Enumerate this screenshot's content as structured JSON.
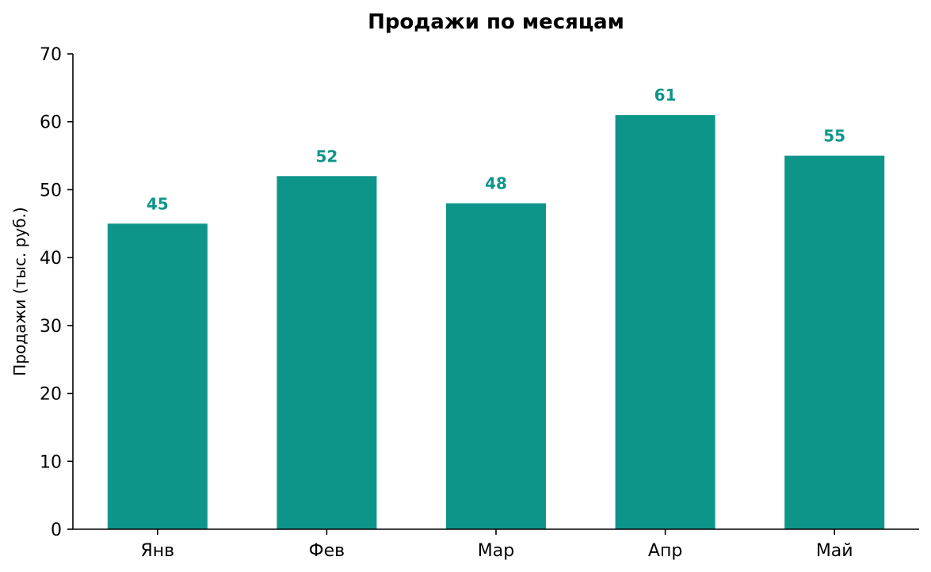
{
  "chart_data": {
    "type": "bar",
    "title": "Продажи по месяцам",
    "xlabel": "",
    "ylabel": "Продажи (тыс. руб.)",
    "categories": [
      "Янв",
      "Фев",
      "Мар",
      "Апр",
      "Май"
    ],
    "values": [
      45,
      52,
      48,
      61,
      55
    ],
    "data_labels": [
      "45",
      "52",
      "48",
      "61",
      "55"
    ],
    "ylim": [
      0,
      70
    ],
    "yticks": [
      0,
      10,
      20,
      30,
      40,
      50,
      60,
      70
    ],
    "ytick_labels": [
      "0",
      "10",
      "20",
      "30",
      "40",
      "50",
      "60",
      "70"
    ],
    "grid": false,
    "legend": "none",
    "bar_color": "#0e958a",
    "label_color": "#0e958a"
  }
}
